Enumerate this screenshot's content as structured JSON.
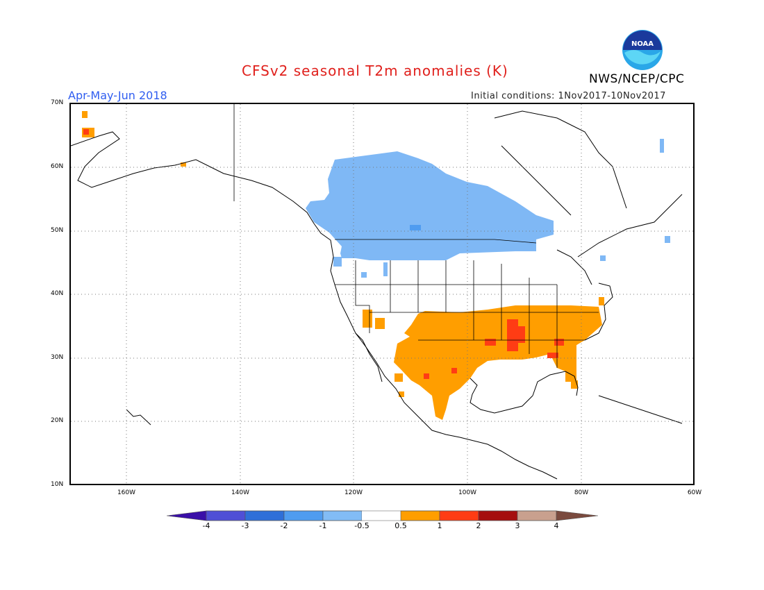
{
  "header": {
    "title": "CFSv2 seasonal T2m anomalies (K)",
    "season": "Apr-May-Jun 2018",
    "initial_conditions": "Initial conditions: 1Nov2017-10Nov2017",
    "agency": "NWS/NCEP/CPC",
    "logo_text": "NOAA"
  },
  "map": {
    "lat_labels": [
      "70N",
      "60N",
      "50N",
      "40N",
      "30N",
      "20N",
      "10N"
    ],
    "lon_labels": [
      "160W",
      "140W",
      "120W",
      "100W",
      "80W",
      "60W"
    ],
    "extent": {
      "lon_min": -171,
      "lon_max": -60,
      "lat_min": 10,
      "lat_max": 70
    },
    "gridlines": true
  },
  "legend": {
    "ticks": [
      "-4",
      "-3",
      "-2",
      "-1",
      "-0.5",
      "0.5",
      "1",
      "2",
      "3",
      "4"
    ],
    "colors": [
      "#3a0fa8",
      "#4f4fd6",
      "#2f6fd8",
      "#4f9cf0",
      "#82bcf5",
      "#ffffff",
      "#ff9e00",
      "#ff3c14",
      "#a50e0e",
      "#c9a08e",
      "#7a4a3e"
    ]
  },
  "colors": {
    "title": "#e0201c",
    "season": "#2f5df0",
    "cold_light": "#7fb8f5",
    "cold_mid": "#4f9cf0",
    "warm_1": "#ff9e00",
    "warm_2": "#ff3c14"
  }
}
